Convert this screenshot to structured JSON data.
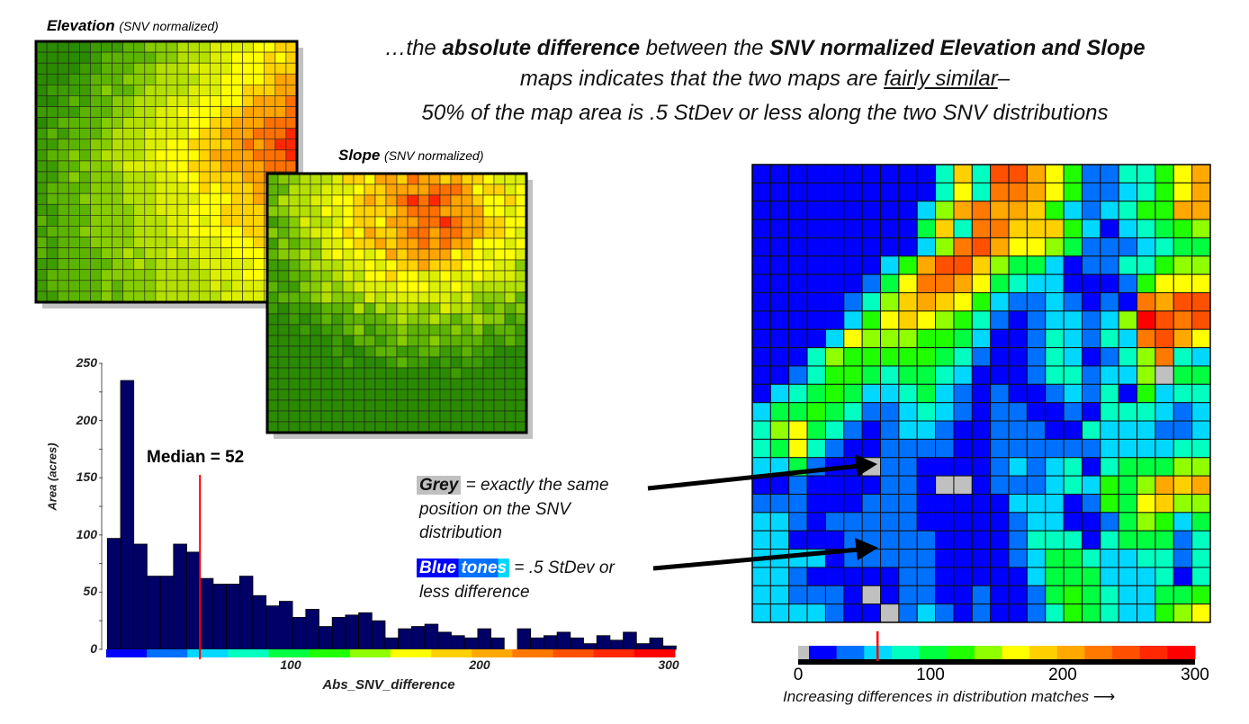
{
  "elevation_map": {
    "title": "Elevation",
    "subtitle": "(SNV normalized)"
  },
  "slope_map": {
    "title": "Slope",
    "subtitle": "(SNV normalized)"
  },
  "headline": {
    "line1_a": "…the ",
    "line1_b": "absolute difference",
    "line1_c": " between the ",
    "line1_d": "SNV normalized Elevation and Slope",
    "line2_a": "maps indicates that the two maps are ",
    "line2_b": "fairly similar",
    "line2_c": "–",
    "line3": "50% of the map area is .5 StDev or less along the two SNV distributions"
  },
  "annotations": {
    "grey_label": "Grey",
    "grey_text1": " = exactly the same",
    "grey_text2": "position on the SNV",
    "grey_text3": "distribution",
    "blue_label": "Blue tones",
    "blue_text1": " = .5 StDev or",
    "blue_text2": "less difference"
  },
  "legend": {
    "ticks": [
      "0",
      "100",
      "200",
      "300"
    ],
    "caption": "Increasing differences in distribution matches",
    "marker_value": 60,
    "colors": [
      "#c0c0c0",
      "#0000ff",
      "#0070ff",
      "#00d8ff",
      "#00ffc0",
      "#00ff40",
      "#20ff00",
      "#90ff00",
      "#ffff00",
      "#ffd000",
      "#ffa800",
      "#ff7800",
      "#ff5000",
      "#ff2800",
      "#ff0000"
    ]
  },
  "difference_map": {
    "rows": [
      "1111111111494CCA86224468AB",
      "1111111111484BBA86223468AB",
      "11111111137ABAA963234 66AA",
      "111111111594BB999631345677",
      "11111111137BCA887522234556",
      "11111113 6ACC9755312244677",
      "1111112 58BBA8543311126888A",
      "1111124 79A98632232121BACC",
      "1111136 89876421233237ECBC",
      "111138777665311243243BCA8A",
      "1114766666542112431247B437",
      "1124665455431112442337055",
      "1345653345321211232416344",
      "3556542234321221121444323",
      "4785421233211222114333223",
      "4584211222211222222333344",
      "3352110221111232341455577",
      "1121111221001222343657A9A9",
      "2221112221111133312658977",
      "3321222221111123311257635",
      "3311122222111124441455524",
      "3333122222111123554334424",
      "3321111122111113555333414",
      "3322210122112112565433556",
      "3333211023212112465433678"
    ]
  },
  "chart_data": {
    "type": "bar",
    "title": "",
    "xlabel": "Abs_SNV_difference",
    "ylabel": "Area (acres)",
    "xlim": [
      0,
      300
    ],
    "ylim": [
      0,
      250
    ],
    "x_ticks": [
      "100",
      "200",
      "300"
    ],
    "y_ticks": [
      "0",
      "50",
      "100",
      "150",
      "200",
      "250"
    ],
    "bin_width": 7,
    "bin_start": 3,
    "values": [
      97,
      235,
      92,
      64,
      64,
      92,
      85,
      62,
      57,
      57,
      64,
      47,
      38,
      42,
      28,
      35,
      20,
      28,
      30,
      32,
      25,
      10,
      18,
      20,
      22,
      15,
      12,
      10,
      18,
      10,
      0,
      18,
      10,
      12,
      15,
      10,
      5,
      12,
      8,
      15,
      5,
      10,
      3
    ],
    "bar_color": "#000066",
    "median": {
      "label": "Median = 52",
      "value": 52,
      "color": "#ff0000"
    }
  }
}
